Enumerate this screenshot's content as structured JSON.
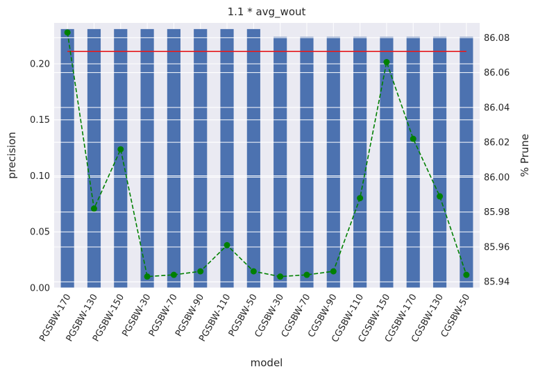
{
  "chart_data": {
    "type": "bar",
    "title": "1.1 * avg_wout",
    "xlabel": "model",
    "ylabel": "precision",
    "y2label": "% Prune",
    "categories": [
      "PGSBW-170",
      "PGSBW-130",
      "PGSBW-150",
      "PGSBW-30",
      "PGSBW-70",
      "PGSBW-90",
      "PGSBW-110",
      "PGSBW-50",
      "CGSBW-30",
      "CGSBW-70",
      "CGSBW-90",
      "CGSBW-110",
      "CGSBW-150",
      "CGSBW-170",
      "CGSBW-130",
      "CGSBW-50"
    ],
    "ylim": [
      0,
      0.2365
    ],
    "yticks": [
      "0.00",
      "0.05",
      "0.10",
      "0.15",
      "0.20"
    ],
    "y2lim": [
      85.9365,
      86.0885
    ],
    "y2ticks": [
      "85.94",
      "85.96",
      "85.98",
      "86.00",
      "86.02",
      "86.04",
      "86.06",
      "86.08"
    ],
    "grid": true,
    "series": [
      {
        "kind": "bar",
        "axis": "left",
        "color": "#4c72b0",
        "values": [
          0.231,
          0.231,
          0.231,
          0.231,
          0.231,
          0.231,
          0.231,
          0.231,
          0.224,
          0.224,
          0.224,
          0.224,
          0.224,
          0.224,
          0.224,
          0.224
        ]
      },
      {
        "kind": "line",
        "axis": "left",
        "color": "#e41a1c",
        "values": [
          0.211,
          0.211,
          0.211,
          0.211,
          0.211,
          0.211,
          0.211,
          0.211,
          0.211,
          0.211,
          0.211,
          0.211,
          0.211,
          0.211,
          0.211,
          0.211
        ]
      },
      {
        "kind": "line-dashed-markers",
        "axis": "right",
        "color": "#008000",
        "values": [
          86.083,
          85.982,
          86.016,
          85.943,
          85.944,
          85.946,
          85.961,
          85.946,
          85.943,
          85.944,
          85.946,
          85.988,
          86.066,
          86.022,
          85.989,
          85.944
        ]
      }
    ]
  }
}
